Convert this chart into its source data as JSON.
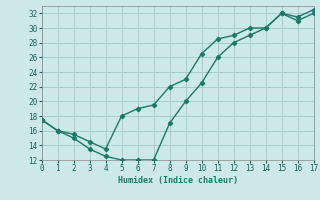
{
  "xlabel": "Humidex (Indice chaleur)",
  "bg_color": "#cce8e8",
  "grid_color": "#aacccc",
  "line_color": "#1a7a6a",
  "line1_x": [
    0,
    1,
    2,
    3,
    4,
    5,
    6,
    7,
    8,
    9,
    10,
    11,
    12,
    13,
    14,
    15,
    16,
    17
  ],
  "line1_y": [
    17.5,
    16.0,
    15.0,
    13.5,
    12.5,
    12.0,
    12.0,
    12.0,
    17.0,
    20.0,
    22.5,
    26.0,
    28.0,
    29.0,
    30.0,
    32.0,
    31.0,
    32.0
  ],
  "line2_x": [
    0,
    1,
    2,
    3,
    4,
    5,
    6,
    7,
    8,
    9,
    10,
    11,
    12,
    13,
    14,
    15,
    16,
    17
  ],
  "line2_y": [
    17.5,
    16.0,
    15.5,
    14.5,
    13.5,
    18.0,
    19.0,
    19.5,
    22.0,
    23.0,
    26.5,
    28.5,
    29.0,
    30.0,
    30.0,
    32.0,
    31.5,
    32.5
  ],
  "xlim": [
    0,
    17
  ],
  "ylim": [
    12,
    33
  ],
  "yticks": [
    12,
    14,
    16,
    18,
    20,
    22,
    24,
    26,
    28,
    30,
    32
  ],
  "xticks": [
    0,
    1,
    2,
    3,
    4,
    5,
    6,
    7,
    8,
    9,
    10,
    11,
    12,
    13,
    14,
    15,
    16,
    17
  ]
}
